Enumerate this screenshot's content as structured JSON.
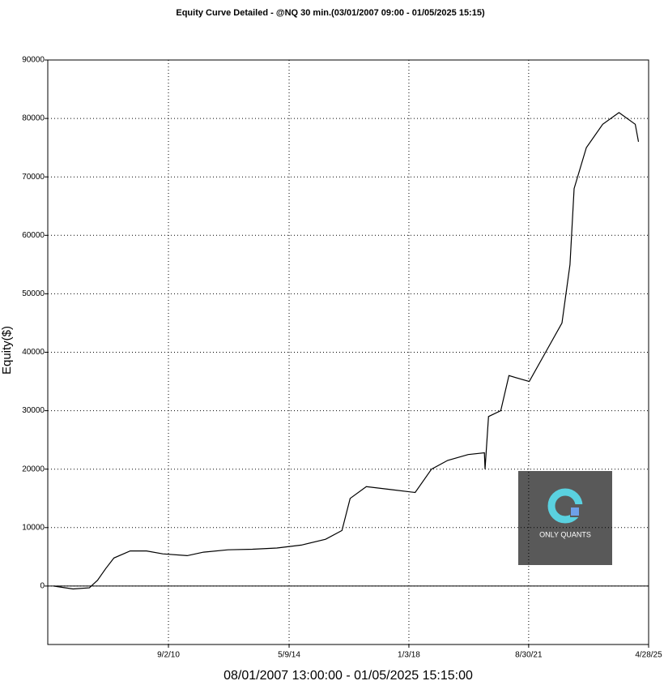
{
  "chart_data": {
    "type": "line",
    "title": "Equity Curve Detailed - @NQ 30 min.(03/01/2007 09:00 - 01/05/2025 15:15)",
    "x_label": "08/01/2007 13:00:00 - 01/05/2025 15:15:00",
    "y_label": "Equity($)",
    "x": [
      "3/1/07",
      "10/5/07",
      "4/4/08",
      "7/4/08",
      "10/3/08",
      "1/2/09",
      "7/3/09",
      "1/1/10",
      "7/1/10",
      "3/30/11",
      "9/28/11",
      "6/26/12",
      "3/26/13",
      "12/23/13",
      "9/21/14",
      "6/20/15",
      "12/19/15",
      "3/19/16",
      "9/16/16",
      "6/15/17",
      "3/14/18",
      "9/12/18",
      "3/12/19",
      "10/26/19",
      "4/24/20",
      "5/1/20",
      "6/9/20",
      "10/23/20",
      "1/22/21",
      "9/6/21",
      "3/7/22",
      "9/5/22",
      "12/4/22",
      "1/19/23",
      "6/4/23",
      "12/3/23",
      "6/2/24",
      "11/30/24",
      "1/5/25"
    ],
    "values": [
      0,
      -500,
      -300,
      1000,
      3000,
      4800,
      6000,
      6000,
      5500,
      5200,
      5800,
      6200,
      6300,
      6500,
      7000,
      8000,
      9500,
      15000,
      17000,
      16500,
      16000,
      20000,
      21500,
      22500,
      22800,
      20000,
      29000,
      30000,
      36000,
      35000,
      40000,
      45000,
      55000,
      68000,
      75000,
      79000,
      81000,
      79000,
      76000
    ],
    "color": "#000000",
    "xlim": [
      "12/27/06",
      "4/28/25"
    ],
    "xticks": [
      "9/2/10",
      "5/9/14",
      "1/3/18",
      "8/30/21",
      "4/28/25"
    ],
    "ylim": [
      -10000,
      90000
    ],
    "yticks": [
      0,
      10000,
      20000,
      30000,
      40000,
      50000,
      60000,
      70000,
      80000,
      90000
    ],
    "grid": true
  },
  "watermark": "ONLY QUANTS"
}
